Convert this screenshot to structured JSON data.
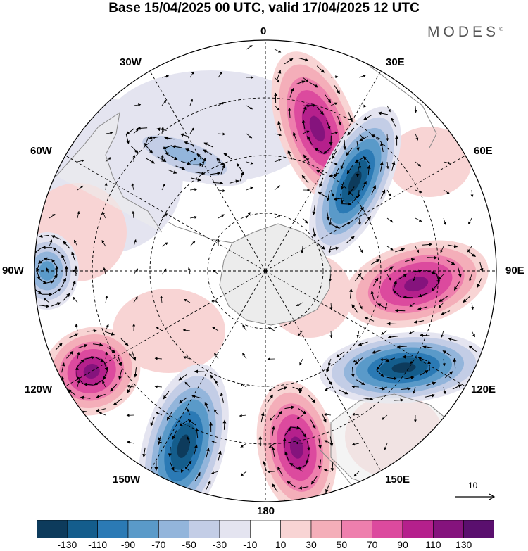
{
  "title": "Base 15/04/2025 00 UTC, valid 17/04/2025 12 UTC",
  "brand": "MODES",
  "brand_mark": "©",
  "longitude_labels": {
    "lon_0": "0",
    "lon_30e": "30E",
    "lon_60e": "60E",
    "lon_90e": "90E",
    "lon_120e": "120E",
    "lon_150e": "150E",
    "lon_180": "180",
    "lon_150w": "150W",
    "lon_120w": "120W",
    "lon_90w": "90W",
    "lon_60w": "60W",
    "lon_30w": "30W"
  },
  "reference_vector_label": "10",
  "colorbar": {
    "colors": [
      "#0d3b5c",
      "#145d8c",
      "#2b7ab5",
      "#5a9ac9",
      "#93b5db",
      "#c3cde6",
      "#e4e4f0",
      "#ffffff",
      "#f8d4d4",
      "#f4aeb9",
      "#ee7fad",
      "#dc4a9e",
      "#b5208c",
      "#85137d",
      "#5a0f6e"
    ],
    "tick_labels": [
      "-130",
      "-110",
      "-90",
      "-70",
      "-50",
      "-30",
      "-10",
      "10",
      "30",
      "50",
      "70",
      "90",
      "110",
      "130"
    ]
  },
  "anomaly_centers": [
    {
      "type": "positive",
      "lon": 20,
      "strength": "strong"
    },
    {
      "type": "negative",
      "lon": 45,
      "strength": "strong"
    },
    {
      "type": "positive",
      "lon": 95,
      "strength": "strong"
    },
    {
      "type": "negative",
      "lon": 125,
      "strength": "strong"
    },
    {
      "type": "positive",
      "lon": 170,
      "strength": "strong"
    },
    {
      "type": "negative",
      "lon": -155,
      "strength": "strong"
    },
    {
      "type": "positive",
      "lon": -120,
      "strength": "strong"
    },
    {
      "type": "negative",
      "lon": -90,
      "strength": "moderate"
    },
    {
      "type": "negative",
      "lon": -35,
      "strength": "weak"
    }
  ]
}
